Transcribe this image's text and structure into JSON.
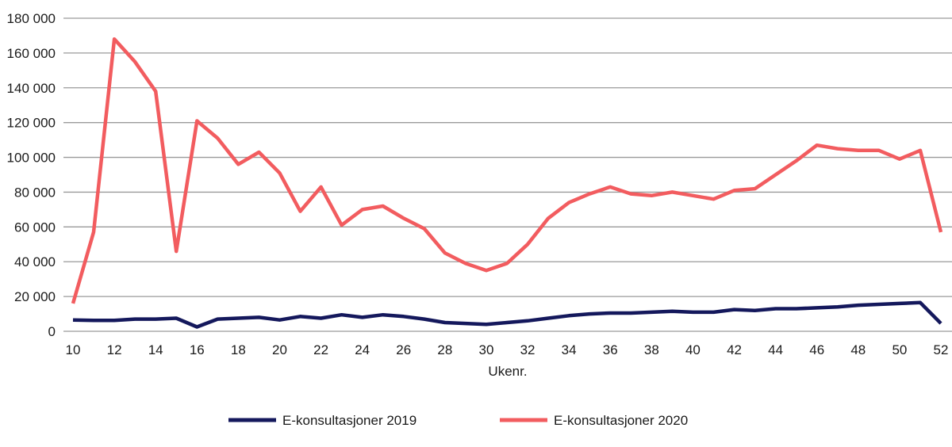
{
  "chart_data": {
    "type": "line",
    "title": "",
    "xlabel": "Ukenr.",
    "ylabel": "",
    "x": [
      10,
      11,
      12,
      13,
      14,
      15,
      16,
      17,
      18,
      19,
      20,
      21,
      22,
      23,
      24,
      25,
      26,
      27,
      28,
      29,
      30,
      31,
      32,
      33,
      34,
      35,
      36,
      37,
      38,
      39,
      40,
      41,
      42,
      43,
      44,
      45,
      46,
      47,
      48,
      49,
      50,
      51,
      52
    ],
    "x_ticks": [
      10,
      12,
      14,
      16,
      18,
      20,
      22,
      24,
      26,
      28,
      30,
      32,
      34,
      36,
      38,
      40,
      42,
      44,
      46,
      48,
      50,
      52
    ],
    "y_ticks": [
      0,
      20000,
      40000,
      60000,
      80000,
      100000,
      120000,
      140000,
      160000,
      180000
    ],
    "y_tick_labels": [
      "0",
      "20 000",
      "40 000",
      "60 000",
      "80 000",
      "100 000",
      "120 000",
      "140 000",
      "160 000",
      "180 000"
    ],
    "ylim": [
      0,
      180000
    ],
    "xlim": [
      10,
      52
    ],
    "grid": true,
    "legend_position": "bottom",
    "series": [
      {
        "name": "E-konsultasjoner 2019",
        "color": "#14185c",
        "values": [
          6500,
          6300,
          6300,
          7000,
          7000,
          7500,
          2500,
          7000,
          7500,
          8000,
          6500,
          8500,
          7500,
          9500,
          8000,
          9500,
          8500,
          7000,
          5000,
          4500,
          4000,
          5000,
          6000,
          7500,
          9000,
          10000,
          10500,
          10500,
          11000,
          11500,
          11000,
          11000,
          12500,
          12000,
          13000,
          13000,
          13500,
          14000,
          15000,
          15500,
          16000,
          16500,
          4500
        ]
      },
      {
        "name": "E-konsultasjoner 2020",
        "color": "#f25c5f",
        "values": [
          16000,
          57000,
          168000,
          155000,
          138000,
          46000,
          121000,
          111000,
          96000,
          103000,
          91000,
          69000,
          83000,
          61000,
          70000,
          72000,
          65000,
          59000,
          45000,
          39000,
          35000,
          39000,
          50000,
          65000,
          74000,
          79000,
          83000,
          79000,
          78000,
          80000,
          78000,
          76000,
          81000,
          82000,
          90000,
          98000,
          107000,
          105000,
          104000,
          104000,
          99000,
          104000,
          57000
        ]
      }
    ]
  }
}
